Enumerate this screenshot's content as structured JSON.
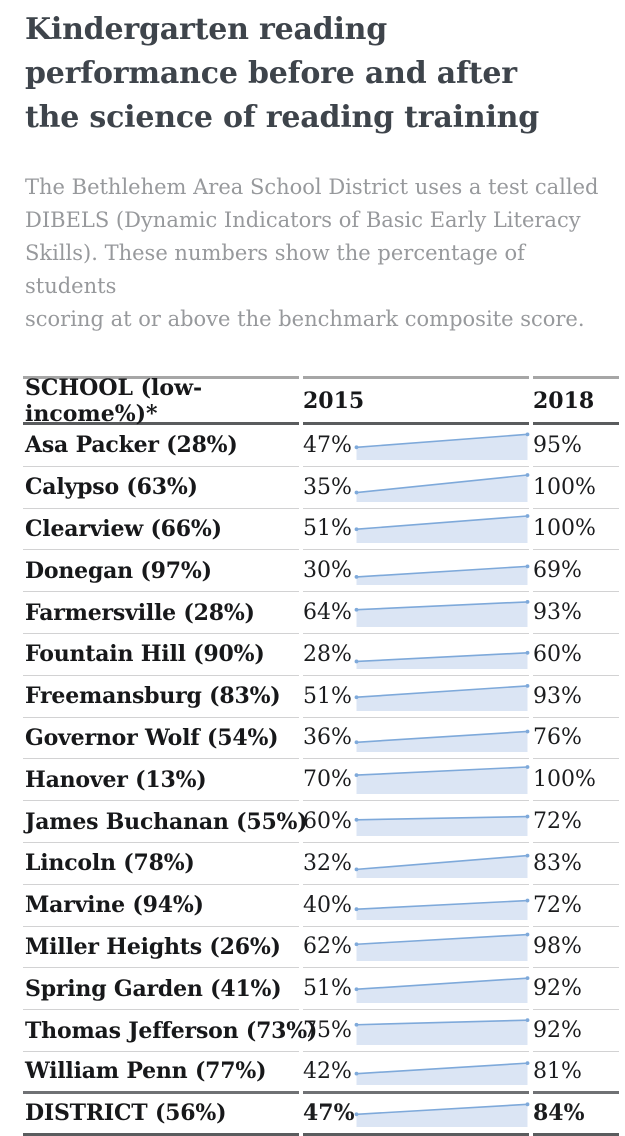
{
  "page": {
    "title": "Kindergarten reading\nperformance before and after\nthe science of reading training",
    "subtitle": "The Bethlehem Area School District uses a test called\nDIBELS (Dynamic Indicators of Basic Early Literacy\nSkills). These numbers show the percentage of students\nscoring at or above the benchmark composite score."
  },
  "table": {
    "headers": {
      "school": "SCHOOL (low-income%)*",
      "y2015": "2015",
      "y2018": "2018"
    },
    "value_suffix": "%"
  },
  "colors": {
    "slope_fill": "#dbe5f4",
    "slope_line": "#7ea9da",
    "title_text": "#3e444b",
    "subtitle_text": "#97999c",
    "border_dark": "#5a5c5e",
    "border_light": "#d2d2d3"
  },
  "chart_data": {
    "type": "table",
    "title": "Kindergarten reading performance before and after the science of reading training",
    "subtitle": "The Bethlehem Area School District uses a test called DIBELS (Dynamic Indicators of Basic Early Literacy Skills). These numbers show the percentage of students scoring at or above the benchmark composite score.",
    "columns": [
      "SCHOOL (low-income%)*",
      "2015",
      "2018"
    ],
    "value_unit": "percent of students at/above benchmark",
    "row_visual": "slope area chart rising from 2015 value to 2018 value, scale 0-100",
    "rows": [
      {
        "school": "Asa Packer (28%)",
        "v2015": 47,
        "v2018": 95,
        "district": false
      },
      {
        "school": "Calypso (63%)",
        "v2015": 35,
        "v2018": 100,
        "district": false
      },
      {
        "school": "Clearview (66%)",
        "v2015": 51,
        "v2018": 100,
        "district": false
      },
      {
        "school": "Donegan (97%)",
        "v2015": 30,
        "v2018": 69,
        "district": false
      },
      {
        "school": "Farmersville (28%)",
        "v2015": 64,
        "v2018": 93,
        "district": false
      },
      {
        "school": "Fountain Hill (90%)",
        "v2015": 28,
        "v2018": 60,
        "district": false
      },
      {
        "school": "Freemansburg (83%)",
        "v2015": 51,
        "v2018": 93,
        "district": false
      },
      {
        "school": "Governor Wolf (54%)",
        "v2015": 36,
        "v2018": 76,
        "district": false
      },
      {
        "school": "Hanover (13%)",
        "v2015": 70,
        "v2018": 100,
        "district": false
      },
      {
        "school": "James Buchanan (55%)",
        "v2015": 60,
        "v2018": 72,
        "district": false
      },
      {
        "school": "Lincoln (78%)",
        "v2015": 32,
        "v2018": 83,
        "district": false
      },
      {
        "school": "Marvine (94%)",
        "v2015": 40,
        "v2018": 72,
        "district": false
      },
      {
        "school": "Miller Heights (26%)",
        "v2015": 62,
        "v2018": 98,
        "district": false
      },
      {
        "school": "Spring Garden (41%)",
        "v2015": 51,
        "v2018": 92,
        "district": false
      },
      {
        "school": "Thomas Jefferson (73%)",
        "v2015": 75,
        "v2018": 92,
        "district": false
      },
      {
        "school": "William Penn (77%)",
        "v2015": 42,
        "v2018": 81,
        "district": false
      },
      {
        "school": "DISTRICT (56%)",
        "v2015": 47,
        "v2018": 84,
        "district": true
      }
    ]
  }
}
